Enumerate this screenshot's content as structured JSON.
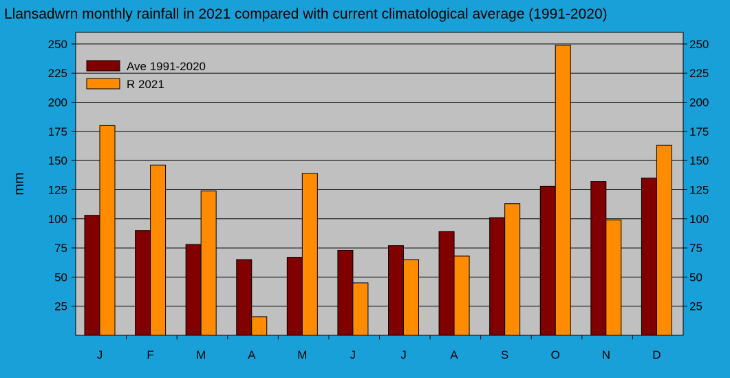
{
  "chart_data": {
    "type": "bar",
    "title": "Llansadwrn monthly rainfall in 2021 compared with current climatological average (1991-2020)",
    "ylabel": "mm",
    "xlabel": "",
    "ylim": [
      0,
      260
    ],
    "yticks": [
      25,
      50,
      75,
      100,
      125,
      150,
      175,
      200,
      225,
      250
    ],
    "categories": [
      "J",
      "F",
      "M",
      "A",
      "M",
      "J",
      "J",
      "A",
      "S",
      "O",
      "N",
      "D"
    ],
    "series": [
      {
        "name": "Ave 1991-2020",
        "color": "#800000",
        "values": [
          103,
          90,
          78,
          65,
          67,
          73,
          77,
          89,
          101,
          128,
          132,
          135
        ]
      },
      {
        "name": "R 2021",
        "color": "#ff8c00",
        "values": [
          180,
          146,
          124,
          16,
          139,
          45,
          65,
          68,
          113,
          249,
          99,
          163
        ]
      }
    ],
    "grid": true,
    "legend_position": "top-left",
    "plot_background": "#c0c0c0",
    "page_background": "#1aa0d8"
  }
}
